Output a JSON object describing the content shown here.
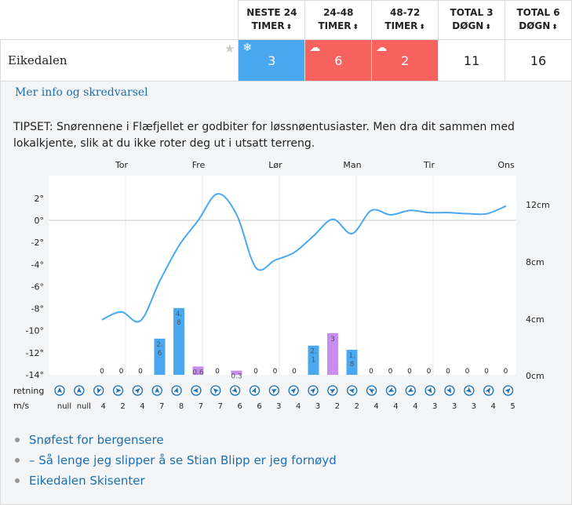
{
  "table": {
    "headers": [
      {
        "line1": "NESTE 24",
        "line2": "TIMER"
      },
      {
        "line1": "24-48",
        "line2": "TIMER"
      },
      {
        "line1": "48-72",
        "line2": "TIMER"
      },
      {
        "line1": "TOTAL 3",
        "line2": "DØGN"
      },
      {
        "line1": "TOTAL 6",
        "line2": "DØGN"
      }
    ],
    "sort_icon": "sort-icon",
    "location": "Eikedalen",
    "next24": "3",
    "d24_48": "6",
    "d48_72": "2",
    "total3": "11",
    "total6": "16",
    "colors": {
      "blue": "#4aa8f0",
      "red": "#f7625e"
    }
  },
  "more_info_link": "Mer info og skredvarsel",
  "tips": "TIPSET: Snørennene i Flæfjellet er godbiter for løssnøentusiaster. Men dra dit sammen med lokalkjente, slik at du ikke roter deg ut i utsatt terreng.",
  "chart_data": {
    "type": "line",
    "days": [
      "Tor",
      "Fre",
      "Lør",
      "Man",
      "Tir",
      "Ons"
    ],
    "temp_ticks": [
      "2°",
      "0°",
      "-2°",
      "-4°",
      "-6°",
      "-8°",
      "-10°",
      "-12°",
      "-14°"
    ],
    "temp_ylim": [
      -14,
      3
    ],
    "snow_ticks": [
      "12cm",
      "8cm",
      "4cm",
      "0cm"
    ],
    "snow_ylim": [
      0,
      12
    ],
    "temperature": [
      -9.0,
      -8.3,
      -9.1,
      -5.5,
      -2.3,
      0.0,
      2.4,
      0.5,
      -4.3,
      -3.6,
      -2.9,
      -1.4,
      0.1,
      -1.2,
      0.9,
      0.5,
      0.9,
      0.7,
      0.7,
      0.6,
      0.6,
      1.3
    ],
    "snow_labels": [
      "0",
      "0",
      "0",
      "2.\n6",
      "4.\n8",
      "0.6",
      "0",
      "0.3",
      "0",
      "0",
      "0",
      "2.\n1",
      "3",
      "1.\n8",
      "0",
      "0",
      "0",
      "0",
      "0",
      "0",
      "0",
      "0"
    ],
    "snow_values": [
      0,
      0,
      0,
      2.6,
      4.8,
      0.6,
      0,
      0.3,
      0,
      0,
      0,
      2.1,
      3,
      1.8,
      0,
      0,
      0,
      0,
      0,
      0,
      0,
      0
    ],
    "snow_types": [
      "",
      "",
      "",
      "snow",
      "snow",
      "rain",
      "",
      "rain",
      "",
      "",
      "",
      "snow",
      "rain",
      "snow",
      "",
      "",
      "",
      "",
      "",
      "",
      "",
      ""
    ],
    "colors": {
      "snow": "#4aa8f0",
      "rain": "#c98df0",
      "line": "#4aa8f0"
    },
    "wind_label": "retning",
    "speed_label": "m/s",
    "wind_directions": [
      0,
      0,
      200,
      90,
      45,
      0,
      20,
      270,
      315,
      135,
      20,
      60,
      45,
      45,
      60,
      280,
      300,
      240,
      240,
      150,
      150,
      130,
      30,
      45
    ],
    "wind_speeds": [
      "null",
      "null",
      "4",
      "2",
      "4",
      "7",
      "8",
      "7",
      "7",
      "6",
      "6",
      "3",
      "4",
      "3",
      "2",
      "2",
      "4",
      "4",
      "4",
      "3",
      "3",
      "3",
      "4",
      "5"
    ]
  },
  "links": [
    "Snøfest for bergensere",
    "– Så lenge jeg slipper å se Stian Blipp er jeg fornøyd",
    "Eikedalen Skisenter"
  ]
}
